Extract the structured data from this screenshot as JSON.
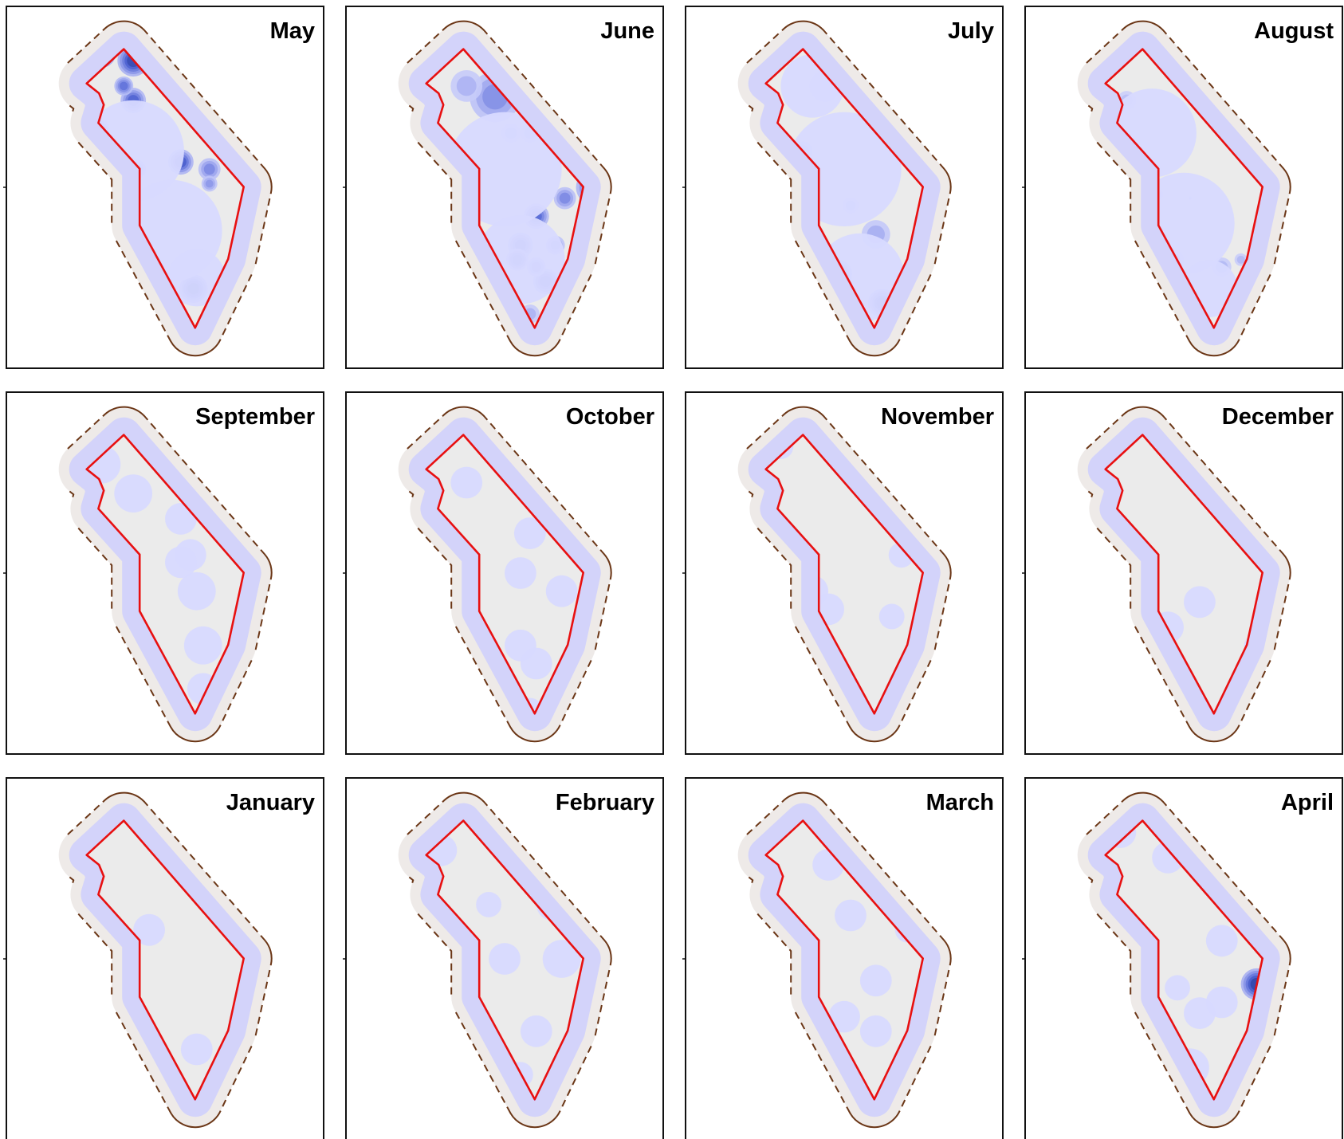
{
  "chart_data": {
    "type": "heatmap",
    "description_units": "normalized panel coordinates (0-1); densities 0-1",
    "panels": [
      {
        "title": "May",
        "blobs": [
          [
            0.3,
            0.13,
            0.045,
            1.0
          ],
          [
            0.4,
            0.15,
            0.05,
            0.95
          ],
          [
            0.4,
            0.26,
            0.04,
            0.8
          ],
          [
            0.37,
            0.22,
            0.03,
            0.7
          ],
          [
            0.22,
            0.25,
            0.03,
            0.7
          ],
          [
            0.29,
            0.34,
            0.035,
            0.75
          ],
          [
            0.33,
            0.4,
            0.035,
            0.7
          ],
          [
            0.41,
            0.45,
            0.03,
            0.6
          ],
          [
            0.55,
            0.43,
            0.04,
            0.85
          ],
          [
            0.64,
            0.45,
            0.035,
            0.6
          ],
          [
            0.64,
            0.49,
            0.025,
            0.5
          ],
          [
            0.38,
            0.62,
            0.025,
            0.4
          ],
          [
            0.59,
            0.78,
            0.045,
            1.0
          ],
          [
            0.64,
            0.87,
            0.03,
            0.35
          ],
          [
            0.4,
            0.4,
            0.16,
            0.18
          ],
          [
            0.52,
            0.62,
            0.16,
            0.14
          ],
          [
            0.6,
            0.75,
            0.09,
            0.12
          ]
        ]
      },
      {
        "title": "June",
        "blobs": [
          [
            0.47,
            0.25,
            0.08,
            0.55
          ],
          [
            0.38,
            0.22,
            0.05,
            0.35
          ],
          [
            0.25,
            0.28,
            0.03,
            0.35
          ],
          [
            0.52,
            0.35,
            0.03,
            0.3
          ],
          [
            0.58,
            0.35,
            0.03,
            0.3
          ],
          [
            0.78,
            0.5,
            0.055,
            0.85
          ],
          [
            0.69,
            0.53,
            0.035,
            0.6
          ],
          [
            0.6,
            0.58,
            0.04,
            0.75
          ],
          [
            0.55,
            0.66,
            0.04,
            0.8
          ],
          [
            0.54,
            0.7,
            0.035,
            0.75
          ],
          [
            0.66,
            0.66,
            0.03,
            0.5
          ],
          [
            0.74,
            0.72,
            0.03,
            0.45
          ],
          [
            0.63,
            0.76,
            0.04,
            0.85
          ],
          [
            0.6,
            0.72,
            0.03,
            0.6
          ],
          [
            0.7,
            0.8,
            0.035,
            0.55
          ],
          [
            0.58,
            0.85,
            0.03,
            0.35
          ],
          [
            0.58,
            0.95,
            0.015,
            0.25
          ],
          [
            0.5,
            0.45,
            0.18,
            0.16
          ],
          [
            0.55,
            0.7,
            0.14,
            0.14
          ]
        ]
      },
      {
        "title": "July",
        "blobs": [
          [
            0.44,
            0.22,
            0.05,
            0.2
          ],
          [
            0.37,
            0.4,
            0.03,
            0.4
          ],
          [
            0.38,
            0.46,
            0.02,
            0.25
          ],
          [
            0.52,
            0.55,
            0.025,
            0.3
          ],
          [
            0.65,
            0.36,
            0.025,
            0.25
          ],
          [
            0.6,
            0.63,
            0.045,
            0.4
          ],
          [
            0.42,
            0.7,
            0.05,
            1.0
          ],
          [
            0.48,
            0.74,
            0.045,
            0.85
          ],
          [
            0.5,
            0.82,
            0.035,
            0.9
          ],
          [
            0.62,
            0.82,
            0.045,
            0.9
          ],
          [
            0.57,
            0.92,
            0.04,
            0.85
          ],
          [
            0.63,
            0.93,
            0.025,
            0.8
          ],
          [
            0.2,
            0.34,
            0.015,
            0.25
          ],
          [
            0.5,
            0.45,
            0.18,
            0.16
          ],
          [
            0.55,
            0.75,
            0.14,
            0.16
          ],
          [
            0.4,
            0.22,
            0.1,
            0.12
          ]
        ]
      },
      {
        "title": "August",
        "blobs": [
          [
            0.24,
            0.16,
            0.03,
            0.45
          ],
          [
            0.32,
            0.26,
            0.03,
            0.25
          ],
          [
            0.42,
            0.52,
            0.015,
            0.25
          ],
          [
            0.62,
            0.72,
            0.03,
            0.3
          ],
          [
            0.68,
            0.7,
            0.02,
            0.3
          ],
          [
            0.75,
            0.68,
            0.03,
            0.3
          ],
          [
            0.47,
            0.7,
            0.03,
            0.35
          ],
          [
            0.52,
            0.53,
            0.005,
            0.3
          ],
          [
            0.4,
            0.35,
            0.14,
            0.14
          ],
          [
            0.5,
            0.6,
            0.16,
            0.12
          ],
          [
            0.58,
            0.78,
            0.09,
            0.1
          ]
        ]
      },
      {
        "title": "September",
        "blobs": [
          [
            0.3,
            0.2,
            0.06,
            0.12
          ],
          [
            0.4,
            0.28,
            0.06,
            0.12
          ],
          [
            0.55,
            0.35,
            0.05,
            0.12
          ],
          [
            0.58,
            0.45,
            0.05,
            0.12
          ],
          [
            0.6,
            0.55,
            0.06,
            0.12
          ],
          [
            0.62,
            0.7,
            0.06,
            0.12
          ],
          [
            0.62,
            0.82,
            0.05,
            0.12
          ],
          [
            0.6,
            0.95,
            0.015,
            0.3
          ],
          [
            0.55,
            0.47,
            0.05,
            0.12
          ]
        ]
      },
      {
        "title": "October",
        "blobs": [
          [
            0.38,
            0.25,
            0.05,
            0.12
          ],
          [
            0.58,
            0.39,
            0.05,
            0.12
          ],
          [
            0.55,
            0.5,
            0.05,
            0.12
          ],
          [
            0.68,
            0.55,
            0.05,
            0.12
          ],
          [
            0.55,
            0.7,
            0.05,
            0.12
          ],
          [
            0.6,
            0.75,
            0.05,
            0.12
          ],
          [
            0.58,
            0.88,
            0.04,
            0.12
          ]
        ]
      },
      {
        "title": "November",
        "blobs": [
          [
            0.3,
            0.15,
            0.04,
            0.12
          ],
          [
            0.4,
            0.55,
            0.05,
            0.12
          ],
          [
            0.45,
            0.6,
            0.05,
            0.12
          ],
          [
            0.68,
            0.45,
            0.04,
            0.12
          ],
          [
            0.65,
            0.62,
            0.04,
            0.12
          ]
        ]
      },
      {
        "title": "December",
        "blobs": [
          [
            0.55,
            0.58,
            0.05,
            0.12
          ],
          [
            0.45,
            0.65,
            0.05,
            0.12
          ],
          [
            0.72,
            0.7,
            0.03,
            0.12
          ]
        ]
      },
      {
        "title": "January",
        "blobs": [
          [
            0.3,
            0.1,
            0.03,
            0.12
          ],
          [
            0.45,
            0.42,
            0.05,
            0.12
          ],
          [
            0.6,
            0.75,
            0.05,
            0.12
          ]
        ]
      },
      {
        "title": "February",
        "blobs": [
          [
            0.3,
            0.2,
            0.05,
            0.12
          ],
          [
            0.45,
            0.35,
            0.04,
            0.12
          ],
          [
            0.65,
            0.35,
            0.05,
            0.12
          ],
          [
            0.5,
            0.5,
            0.05,
            0.12
          ],
          [
            0.68,
            0.5,
            0.06,
            0.12
          ],
          [
            0.6,
            0.7,
            0.05,
            0.12
          ],
          [
            0.55,
            0.82,
            0.04,
            0.12
          ]
        ]
      },
      {
        "title": "March",
        "blobs": [
          [
            0.45,
            0.24,
            0.05,
            0.12
          ],
          [
            0.52,
            0.38,
            0.05,
            0.12
          ],
          [
            0.7,
            0.42,
            0.04,
            0.12
          ],
          [
            0.6,
            0.56,
            0.05,
            0.12
          ],
          [
            0.5,
            0.66,
            0.05,
            0.12
          ],
          [
            0.6,
            0.7,
            0.05,
            0.12
          ]
        ]
      },
      {
        "title": "April",
        "blobs": [
          [
            0.3,
            0.15,
            0.05,
            0.12
          ],
          [
            0.45,
            0.22,
            0.05,
            0.12
          ],
          [
            0.62,
            0.45,
            0.05,
            0.12
          ],
          [
            0.48,
            0.58,
            0.04,
            0.12
          ],
          [
            0.55,
            0.65,
            0.05,
            0.12
          ],
          [
            0.62,
            0.62,
            0.05,
            0.12
          ],
          [
            0.73,
            0.57,
            0.05,
            1.0
          ],
          [
            0.52,
            0.8,
            0.06,
            0.12
          ],
          [
            0.48,
            0.85,
            0.04,
            0.12
          ]
        ]
      }
    ]
  }
}
